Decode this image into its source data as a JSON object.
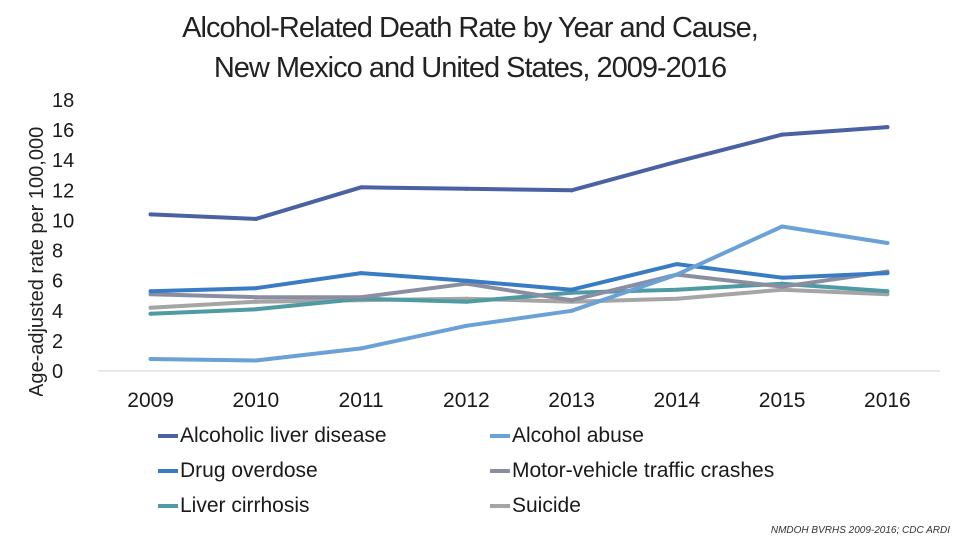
{
  "chart_data": {
    "type": "line",
    "title": [
      "Alcohol-Related Death Rate by Year and Cause,",
      "New Mexico and United States, 2009-2016"
    ],
    "ylabel": "Age-adjusted rate per 100,000",
    "xlabel": "",
    "ylim": [
      0,
      18
    ],
    "yticks": [
      0,
      2,
      4,
      6,
      8,
      10,
      12,
      14,
      16,
      18
    ],
    "categories": [
      "2009",
      "2010",
      "2011",
      "2012",
      "2013",
      "2014",
      "2015",
      "2016"
    ],
    "grid": false,
    "legend_position": "bottom",
    "series": [
      {
        "name": "Alcoholic liver disease",
        "color": "#4a62a3",
        "values": [
          10.4,
          10.1,
          12.2,
          12.1,
          12.0,
          13.9,
          15.7,
          16.2
        ]
      },
      {
        "name": "Alcohol abuse",
        "color": "#6aa1d6",
        "values": [
          0.8,
          0.7,
          1.5,
          3.0,
          4.0,
          6.4,
          9.6,
          8.5
        ]
      },
      {
        "name": "Drug overdose",
        "color": "#3a7cc3",
        "values": [
          5.3,
          5.5,
          6.5,
          6.0,
          5.4,
          7.1,
          6.2,
          6.5
        ]
      },
      {
        "name": "Motor-vehicle traffic crashes",
        "color": "#8a8ea0",
        "values": [
          5.1,
          4.9,
          4.9,
          5.8,
          4.7,
          6.4,
          5.6,
          6.6
        ]
      },
      {
        "name": "Liver cirrhosis",
        "color": "#4f9aa3",
        "values": [
          3.8,
          4.1,
          4.8,
          4.6,
          5.2,
          5.4,
          5.8,
          5.3
        ]
      },
      {
        "name": "Suicide",
        "color": "#a5a5a5",
        "values": [
          4.2,
          4.6,
          4.7,
          4.8,
          4.6,
          4.8,
          5.4,
          5.1
        ]
      }
    ]
  },
  "source": "NMDOH BVRHS 2009-2016; CDC ARDI"
}
